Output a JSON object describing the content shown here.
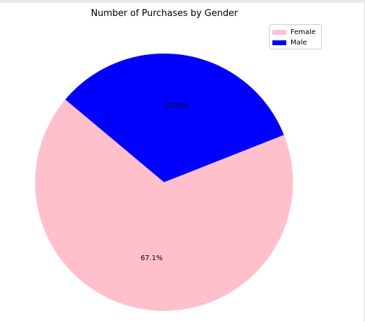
{
  "chart_data": {
    "type": "pie",
    "title": "Number of Purchases by Gender",
    "labels": [
      "Female",
      "Male"
    ],
    "values": [
      67.1,
      32.9
    ],
    "autopct_labels": [
      "67.1%",
      "32.9%"
    ],
    "colors": [
      "#ffc0cb",
      "#0000ff"
    ],
    "start_angle_deg": 140,
    "legend_position": "top-right"
  }
}
